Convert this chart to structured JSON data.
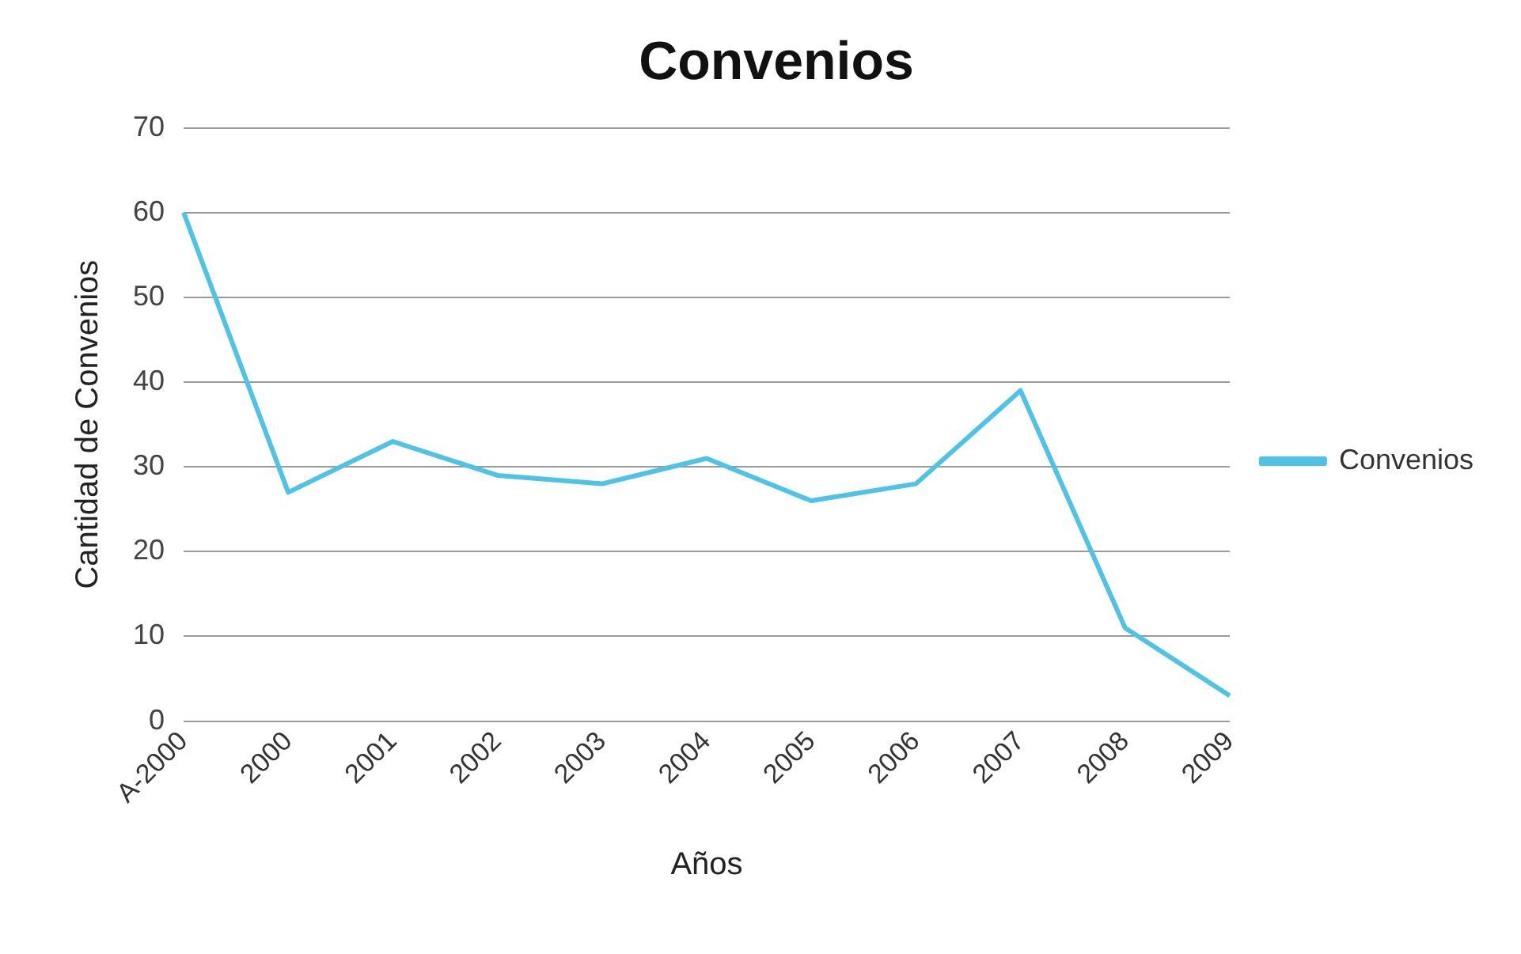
{
  "chart_data": {
    "type": "line",
    "title": "Convenios",
    "xlabel": "Años",
    "ylabel": "Cantidad de Convenios",
    "categories": [
      "A-2000",
      "2000",
      "2001",
      "2002",
      "2003",
      "2004",
      "2005",
      "2006",
      "2007",
      "2008",
      "2009"
    ],
    "series": [
      {
        "name": "Convenios",
        "color": "#4fc3e6",
        "values": [
          60,
          27,
          33,
          29,
          28,
          31,
          26,
          28,
          39,
          11,
          3
        ]
      }
    ],
    "ylim": [
      0,
      70
    ],
    "yticks": [
      0,
      10,
      20,
      30,
      40,
      50,
      60,
      70
    ],
    "grid": "y",
    "legend": "right",
    "marker": "none"
  }
}
